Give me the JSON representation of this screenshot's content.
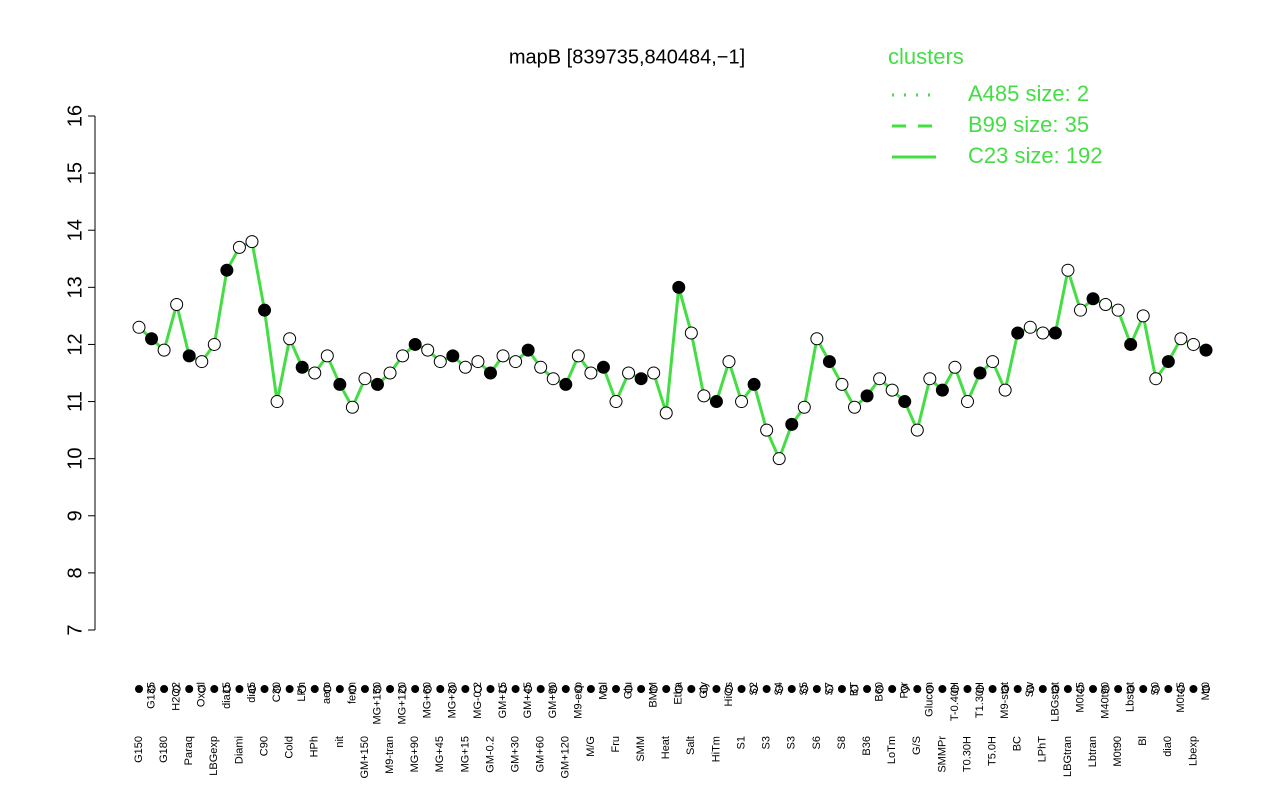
{
  "chart_data": {
    "type": "line",
    "title": "mapB [839735,840484,−1]",
    "categories": [
      "G150",
      "G135",
      "G180",
      "H2O2",
      "Paraq",
      "Oxctl",
      "LBGexp",
      "dia15",
      "Diami",
      "dia5",
      "C90",
      "C30",
      "Cold",
      "LPh",
      "HPh",
      "aero",
      "nit",
      "ferm",
      "GM+150",
      "MG+150",
      "M9-tran",
      "MG+120",
      "MG+90",
      "MG+60",
      "MG+45",
      "MG+30",
      "MG+15",
      "MG-0.2",
      "GM-0.2",
      "GM+15",
      "GM+30",
      "GM+45",
      "GM+60",
      "GM+90",
      "GM+120",
      "M9-exp",
      "M/G",
      "Mal",
      "Fru",
      "Glu",
      "SMM",
      "BMM",
      "Heat",
      "Etha",
      "Salt",
      "Gly",
      "HiTm",
      "HiOs",
      "S1",
      "S2",
      "S3",
      "S4",
      "S3",
      "S5",
      "S6",
      "S7",
      "S8",
      "BT",
      "B36",
      "B60",
      "LoTm",
      "Pyr",
      "G/S",
      "Glucon",
      "SMMPr",
      "T-0.40H",
      "T0.30H",
      "T1.30H",
      "T5.0H",
      "M9-stat",
      "BC",
      "Sw",
      "LPhT",
      "LBGstat",
      "LBGtran",
      "M0t45",
      "Lbtran",
      "M40t90",
      "M0t90",
      "Lbstat",
      "Bl",
      "S0",
      "dia0",
      "M0t45",
      "Lbexp",
      "Mt0"
    ],
    "series": [
      {
        "name": "C23 size: 192",
        "color": "#44dd44",
        "values": [
          12.3,
          12.1,
          11.9,
          12.7,
          11.8,
          11.7,
          12.0,
          13.3,
          13.7,
          13.8,
          12.6,
          11.0,
          12.1,
          11.6,
          11.5,
          11.8,
          11.3,
          10.9,
          11.4,
          11.3,
          11.5,
          11.8,
          12.0,
          11.9,
          11.7,
          11.8,
          11.6,
          11.7,
          11.5,
          11.8,
          11.7,
          11.9,
          11.6,
          11.4,
          11.3,
          11.8,
          11.5,
          11.6,
          11.0,
          11.5,
          11.4,
          11.5,
          10.8,
          13.0,
          12.2,
          11.1,
          11.0,
          11.7,
          11.0,
          11.3,
          10.5,
          10.0,
          10.6,
          10.9,
          12.1,
          11.7,
          11.3,
          10.9,
          11.1,
          11.4,
          11.2,
          11.0,
          10.5,
          11.4,
          11.2,
          11.6,
          11.0,
          11.5,
          11.7,
          11.2,
          12.2,
          12.3,
          12.2,
          12.2,
          13.3,
          12.6,
          12.8,
          12.7,
          12.6,
          12.0,
          12.5,
          11.4,
          11.7,
          12.1,
          12.0,
          11.9
        ]
      }
    ],
    "legend": {
      "title": "clusters",
      "entries": [
        {
          "name": "A485 size: 2",
          "dash": "dotted"
        },
        {
          "name": "B99 size: 35",
          "dash": "dashed"
        },
        {
          "name": "C23 size: 192",
          "dash": "solid"
        }
      ]
    },
    "ylim": [
      7,
      16
    ],
    "yticks": [
      7,
      8,
      9,
      10,
      11,
      12,
      13,
      14,
      15,
      16
    ]
  }
}
